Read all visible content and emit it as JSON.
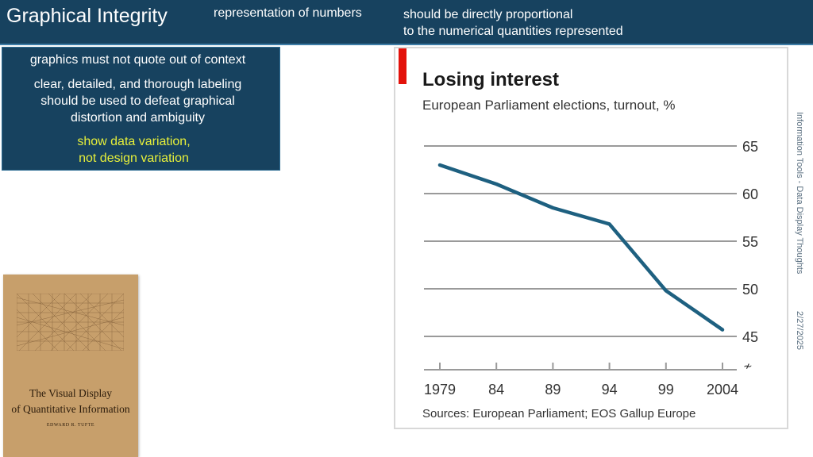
{
  "header": {
    "title": "Graphical Integrity",
    "subtitle_left": "representation of numbers",
    "subtitle_right_line1": "should be directly proportional",
    "subtitle_right_line2": "to the numerical quantities represented"
  },
  "bullets": {
    "item1": "graphics must not quote out of context",
    "item2_line1": "clear, detailed, and thorough labeling",
    "item2_line2": "should be used to defeat graphical",
    "item2_line3": "distortion and ambiguity",
    "item3_line1": "show data variation,",
    "item3_line2": "not design variation"
  },
  "book": {
    "title_line1": "The Visual Display",
    "title_line2": "of Quantitative Information",
    "author": "EDWARD R. TUFTE"
  },
  "side": {
    "course": "Information Tools - Data Display Thoughts",
    "date": "2/27/2025"
  },
  "colors": {
    "header_bg": "#17425f",
    "highlight": "#e6ef3a",
    "line": "#1e6080",
    "accent_red": "#e3120b"
  },
  "chart_data": {
    "type": "line",
    "title": "Losing interest",
    "subtitle": "European Parliament elections, turnout, %",
    "source": "Sources: European Parliament; EOS Gallup Europe",
    "categories": [
      "1979",
      "84",
      "89",
      "94",
      "99",
      "2004"
    ],
    "series": [
      {
        "name": "Turnout",
        "values": [
          63.0,
          61.0,
          58.5,
          56.8,
          49.8,
          45.7
        ]
      }
    ],
    "yticks": [
      "65",
      "60",
      "55",
      "50",
      "45"
    ],
    "ylim": [
      45,
      65
    ],
    "xlabel": "",
    "ylabel": "",
    "grid": true
  }
}
